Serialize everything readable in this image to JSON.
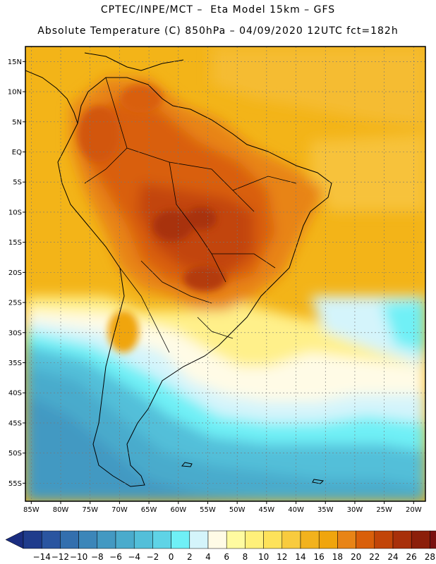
{
  "header": {
    "line1": "CPTEC/INPE/MCT –  Eta Model 15km – GFS",
    "line2": "Absolute Temperature (C) 850hPa – 04/09/2020 12UTC fct=182h"
  },
  "map": {
    "lon_range": [
      -86,
      -18
    ],
    "lat_range": [
      -58,
      17.5
    ],
    "lon_ticks": [
      "85W",
      "80W",
      "75W",
      "70W",
      "65W",
      "60W",
      "55W",
      "50W",
      "45W",
      "40W",
      "35W",
      "30W",
      "25W",
      "20W"
    ],
    "lat_ticks": [
      "15N",
      "10N",
      "5N",
      "EQ",
      "5S",
      "10S",
      "15S",
      "20S",
      "25S",
      "30S",
      "35S",
      "40S",
      "45S",
      "50S",
      "55S"
    ]
  },
  "colorbar": {
    "labels": [
      "−14",
      "−12",
      "−10",
      "−8",
      "−6",
      "−4",
      "−2",
      "0",
      "2",
      "4",
      "6",
      "8",
      "10",
      "12",
      "14",
      "16",
      "18",
      "20",
      "22",
      "24",
      "26",
      "28"
    ],
    "colors": [
      "#1f3c8c",
      "#2a55a0",
      "#336fae",
      "#3c86b9",
      "#4399c2",
      "#4aabcc",
      "#53bfd9",
      "#5fd3e6",
      "#6ff0f6",
      "#d4f4fb",
      "#fffbe6",
      "#fffba0",
      "#fff07a",
      "#fde25a",
      "#f8cb3e",
      "#f2b21d",
      "#f0a50d",
      "#e88416",
      "#d95f0a",
      "#c24508",
      "#a8300a",
      "#8c1f0a",
      "#7a1010"
    ],
    "low_arrow_color": "#1a2d80",
    "high_arrow_color": "#7a0020"
  }
}
